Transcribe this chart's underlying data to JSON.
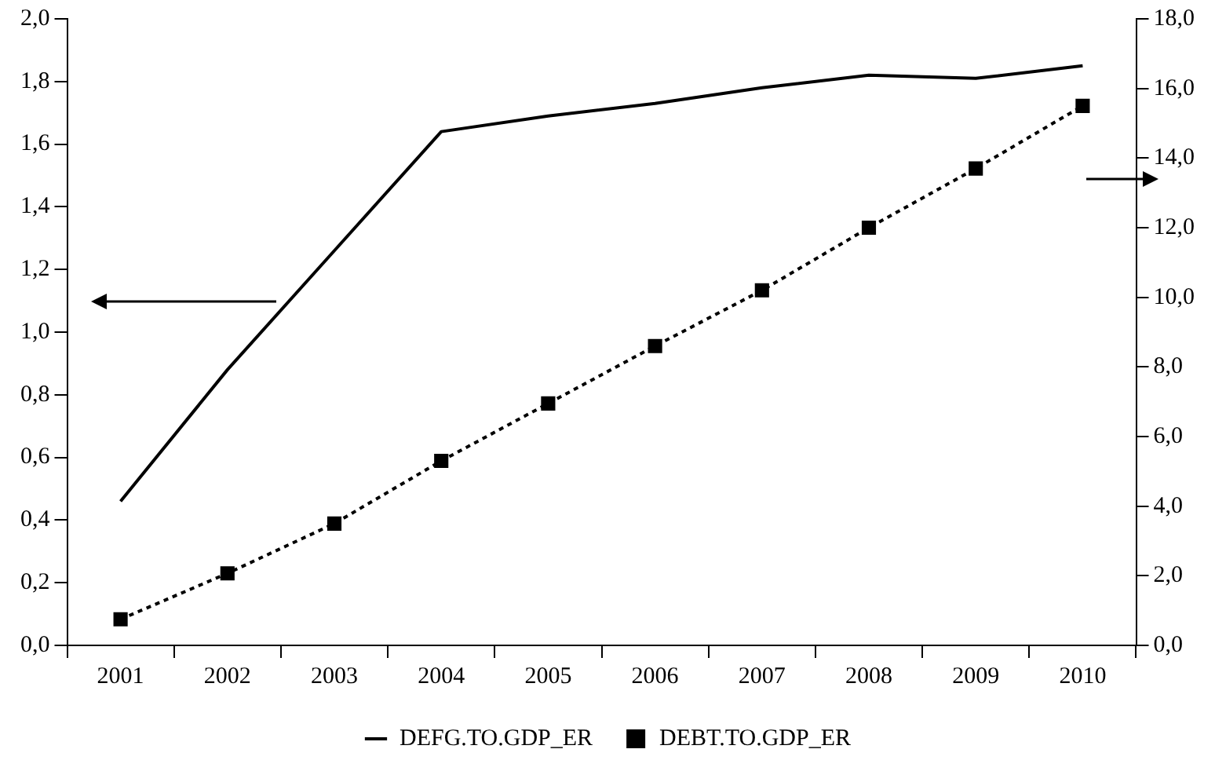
{
  "chart_data": {
    "type": "line",
    "categories": [
      "2001",
      "2002",
      "2003",
      "2004",
      "2005",
      "2006",
      "2007",
      "2008",
      "2009",
      "2010"
    ],
    "series": [
      {
        "name": "DEFG.TO.GDP_ER",
        "color": "#000000",
        "values": [
          0.46,
          0.88,
          1.26,
          1.64,
          1.69,
          1.73,
          1.78,
          1.82,
          1.81,
          1.85
        ],
        "marker": "none",
        "line_style": "solid"
      },
      {
        "name": "DEBT.TO.GDP_ER",
        "color": "#000000",
        "axis": "y2",
        "values": [
          0.75,
          2.07,
          3.5,
          5.3,
          6.95,
          8.6,
          10.2,
          12.0,
          13.7,
          15.5
        ],
        "marker": "square",
        "line_style": "dotted"
      }
    ],
    "ylim": [
      0,
      2
    ],
    "yticks": [
      {
        "value": 0,
        "label": "0,0"
      },
      {
        "value": 0.2,
        "label": "0,2"
      },
      {
        "value": 0.4,
        "label": "0,4"
      },
      {
        "value": 0.6,
        "label": "0,6"
      },
      {
        "value": 0.8,
        "label": "0,8"
      },
      {
        "value": 1,
        "label": "1,0"
      },
      {
        "value": 1.2,
        "label": "1,2"
      },
      {
        "value": 1.4,
        "label": "1,4"
      },
      {
        "value": 1.6,
        "label": "1,6"
      },
      {
        "value": 1.8,
        "label": "1,8"
      },
      {
        "value": 2,
        "label": "2,0"
      }
    ],
    "y2lim": [
      0,
      18
    ],
    "y2ticks": [
      {
        "value": 0,
        "label": "0,0"
      },
      {
        "value": 2,
        "label": "2,0"
      },
      {
        "value": 4,
        "label": "4,0"
      },
      {
        "value": 6,
        "label": "6,0"
      },
      {
        "value": 8,
        "label": "8,0"
      },
      {
        "value": 10,
        "label": "10,0"
      },
      {
        "value": 12,
        "label": "12,0"
      },
      {
        "value": 14,
        "label": "14,0"
      },
      {
        "value": 16,
        "label": "16,0"
      },
      {
        "value": 18,
        "label": "18,0"
      }
    ],
    "grid": false,
    "legend": "bottom"
  }
}
